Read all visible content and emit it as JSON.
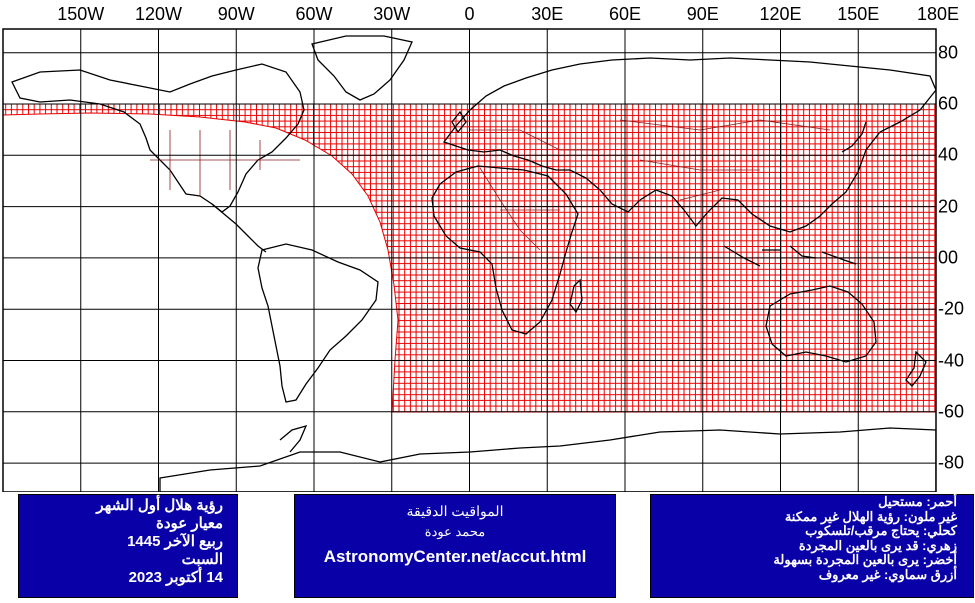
{
  "map": {
    "longitude_labels": [
      "150W",
      "120W",
      "90W",
      "60W",
      "30W",
      "0",
      "30E",
      "60E",
      "90E",
      "120E",
      "150E",
      "180E"
    ],
    "latitude_labels": [
      "80",
      "60",
      "40",
      "20",
      "00",
      "-20",
      "-40",
      "-60",
      "-80"
    ],
    "visibility_zone_color": "#ff0000",
    "zone_lat_range": [
      -60,
      60
    ],
    "zone_lon_range": [
      -30,
      180
    ]
  },
  "left_box": {
    "lines": [
      "رؤية هلال أول الشهر",
      "معيار عودة",
      "ربيع الآخر 1445",
      "السبت",
      "14 أكتوبر 2023"
    ]
  },
  "middle_box": {
    "title": "المواقيت الدقيقة",
    "author": "محمد عودة",
    "url": "AstronomyCenter.net/accut.html"
  },
  "right_box": {
    "lines": [
      "أحمر: مستحيل",
      "غير ملون: رؤية الهلال غير ممكنة",
      "كحلي: يحتاج مرقب/تلسكوب",
      "زهري: قد يرى بالعين المجردة",
      "أخضر: يرى بالعين المجردة بسهولة",
      "أزرق سماوي: غير معروف"
    ]
  },
  "colors": {
    "box_background": "#0a00a8",
    "box_text": "#ffffff",
    "grid": "#000000",
    "coast": "#000000",
    "inner_coast": "#8b1c1c"
  }
}
